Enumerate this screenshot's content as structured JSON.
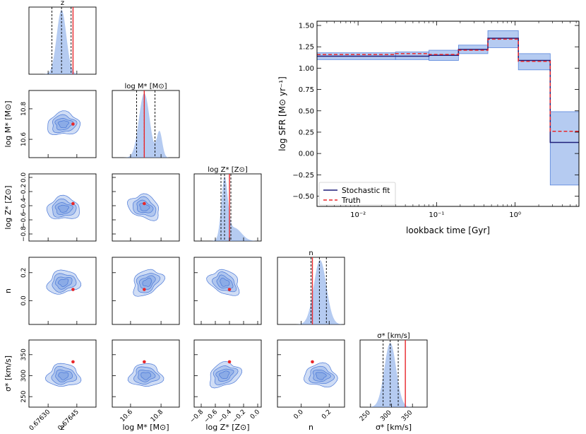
{
  "chart_data": [
    {
      "type": "corner",
      "parameters": [
        {
          "key": "z",
          "label": "z",
          "title": "z",
          "range": [
            0.6762,
            0.67655
          ],
          "ticks": [
            0.6763,
            0.67645
          ],
          "tick_labels": [
            "0.67630",
            "0.67645"
          ],
          "truth": 0.67643,
          "quantiles": [
            0.67632,
            0.67637,
            0.67642
          ],
          "dist": {
            "comps": [
              [
                0.67637,
                2.5e-05,
                1.0
              ]
            ]
          }
        },
        {
          "key": "logM",
          "label": "log M* [M⊙]",
          "title": "log M* [M⊙]",
          "range": [
            10.48,
            10.92
          ],
          "ticks": [
            10.6,
            10.8
          ],
          "tick_labels": [
            "10.6",
            "10.8"
          ],
          "truth": 10.69,
          "quantiles": [
            10.64,
            10.69,
            10.76
          ],
          "dist": {
            "comps": [
              [
                10.69,
                0.035,
                1.0
              ],
              [
                10.79,
                0.018,
                0.4
              ]
            ]
          }
        },
        {
          "key": "logZ",
          "label": "log Z* [Z⊙]",
          "title": "log Z* [Z⊙]",
          "range": [
            -0.9,
            0.05
          ],
          "ticks": [
            -0.8,
            -0.6,
            -0.4,
            -0.2,
            0.0
          ],
          "tick_labels": [
            "−0.8",
            "−0.6",
            "−0.4",
            "−0.2",
            "0.0"
          ],
          "truth": -0.4,
          "quantiles": [
            -0.52,
            -0.47,
            -0.38
          ],
          "dist": {
            "comps": [
              [
                -0.47,
                0.045,
                1.0
              ],
              [
                -0.33,
                0.1,
                0.22
              ]
            ]
          }
        },
        {
          "key": "n",
          "label": "n",
          "title": "n",
          "range": [
            -0.17,
            0.31
          ],
          "ticks": [
            0.0,
            0.2
          ],
          "tick_labels": [
            "0.0",
            "0.2"
          ],
          "truth": 0.08,
          "quantiles": [
            0.07,
            0.13,
            0.18
          ],
          "dist": {
            "comps": [
              [
                0.135,
                0.045,
                1.0
              ]
            ]
          }
        },
        {
          "key": "sigma",
          "label": "σ* [km/s]",
          "title": "σ* [km/s]",
          "range": [
            225,
            385
          ],
          "ticks": [
            250,
            300,
            350
          ],
          "tick_labels": [
            "250",
            "300",
            "350"
          ],
          "truth": 333,
          "quantiles": [
            280,
            297,
            316
          ],
          "dist": {
            "comps": [
              [
                297,
                14,
                1.0
              ]
            ]
          }
        }
      ],
      "pairs": [
        {
          "row": 1,
          "col": 0,
          "center": [
            0.67638,
            10.7
          ],
          "truth": [
            0.67643,
            10.7
          ],
          "tilt": 0.1
        },
        {
          "row": 2,
          "col": 0,
          "center": [
            0.67638,
            -0.44
          ],
          "truth": [
            0.67643,
            -0.37
          ],
          "tilt": 0.0
        },
        {
          "row": 2,
          "col": 1,
          "center": [
            10.69,
            -0.42
          ],
          "truth": [
            10.69,
            -0.37
          ],
          "tilt": -0.6
        },
        {
          "row": 3,
          "col": 0,
          "center": [
            0.67638,
            0.13
          ],
          "truth": [
            0.67643,
            0.08
          ],
          "tilt": 0.3
        },
        {
          "row": 3,
          "col": 1,
          "center": [
            10.71,
            0.13
          ],
          "truth": [
            10.69,
            0.08
          ],
          "tilt": 0.85
        },
        {
          "row": 3,
          "col": 2,
          "center": [
            -0.47,
            0.13
          ],
          "truth": [
            -0.4,
            0.08
          ],
          "tilt": -0.7
        },
        {
          "row": 4,
          "col": 0,
          "center": [
            0.67638,
            300
          ],
          "truth": [
            0.67643,
            333
          ],
          "tilt": 0.0
        },
        {
          "row": 4,
          "col": 1,
          "center": [
            10.7,
            300
          ],
          "truth": [
            10.69,
            333
          ],
          "tilt": 0.0
        },
        {
          "row": 4,
          "col": 2,
          "center": [
            -0.47,
            302
          ],
          "truth": [
            -0.4,
            333
          ],
          "tilt": 0.55
        },
        {
          "row": 4,
          "col": 3,
          "center": [
            0.14,
            300
          ],
          "truth": [
            0.08,
            333
          ],
          "tilt": -0.2
        }
      ]
    },
    {
      "type": "step",
      "title": "",
      "xlabel": "lookback time [Gyr]",
      "ylabel": "log SFR [M⊙ yr⁻¹]",
      "xscale": "log",
      "xlim": [
        0.003,
        6.5
      ],
      "ylim": [
        -0.62,
        1.55
      ],
      "yticks": [
        -0.5,
        -0.25,
        0.0,
        0.25,
        0.5,
        0.75,
        1.0,
        1.25,
        1.5
      ],
      "ytick_labels": [
        "−0.50",
        "−0.25",
        "0.00",
        "0.25",
        "0.50",
        "0.75",
        "1.00",
        "1.25",
        "1.50"
      ],
      "xticks": [
        0.01,
        0.1,
        1.0
      ],
      "xtick_labels": [
        "10⁻²",
        "10⁻¹",
        "10⁰"
      ],
      "bin_edges": [
        0.003,
        0.03,
        0.08,
        0.19,
        0.45,
        1.1,
        2.8,
        6.5
      ],
      "series": [
        {
          "name": "Stochastic fit",
          "style": "solid",
          "color": "#1f1f7a",
          "values": [
            1.14,
            1.14,
            1.15,
            1.22,
            1.35,
            1.09,
            0.13
          ]
        },
        {
          "name": "Truth",
          "style": "dashed",
          "color": "#e8262a",
          "values": [
            1.16,
            1.17,
            1.16,
            1.21,
            1.34,
            1.08,
            0.26
          ]
        }
      ],
      "band": {
        "lower": [
          1.1,
          1.1,
          1.09,
          1.17,
          1.24,
          0.98,
          -0.37
        ],
        "upper": [
          1.18,
          1.19,
          1.21,
          1.27,
          1.44,
          1.17,
          0.49
        ]
      },
      "legend": {
        "position": "lower-left",
        "entries": [
          "Stochastic fit",
          "Truth"
        ]
      }
    }
  ]
}
